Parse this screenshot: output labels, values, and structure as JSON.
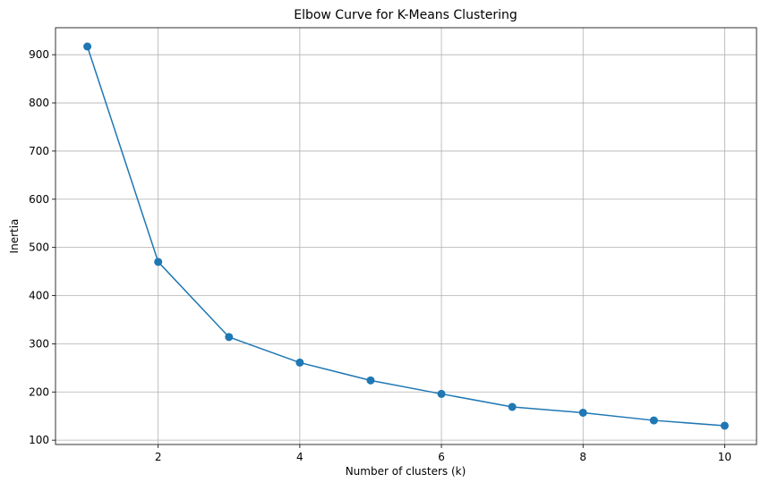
{
  "chart_data": {
    "type": "line",
    "title": "Elbow Curve for K-Means Clustering",
    "x_label": "Number of clusters (k)",
    "y_label": "Inertia",
    "x": [
      1,
      2,
      3,
      4,
      5,
      6,
      7,
      8,
      9,
      10
    ],
    "series": [
      {
        "name": "Inertia",
        "color": "#1f77b4",
        "values": [
          917,
          470,
          314,
          261,
          224,
          196,
          169,
          157,
          141,
          130
        ]
      }
    ],
    "xlim": [
      0.55,
      10.45
    ],
    "xticks": [
      2,
      4,
      6,
      8,
      10
    ],
    "ylim": [
      91,
      956
    ],
    "yticks": [
      100,
      200,
      300,
      400,
      500,
      600,
      700,
      800,
      900
    ],
    "grid": true,
    "markers": true
  }
}
